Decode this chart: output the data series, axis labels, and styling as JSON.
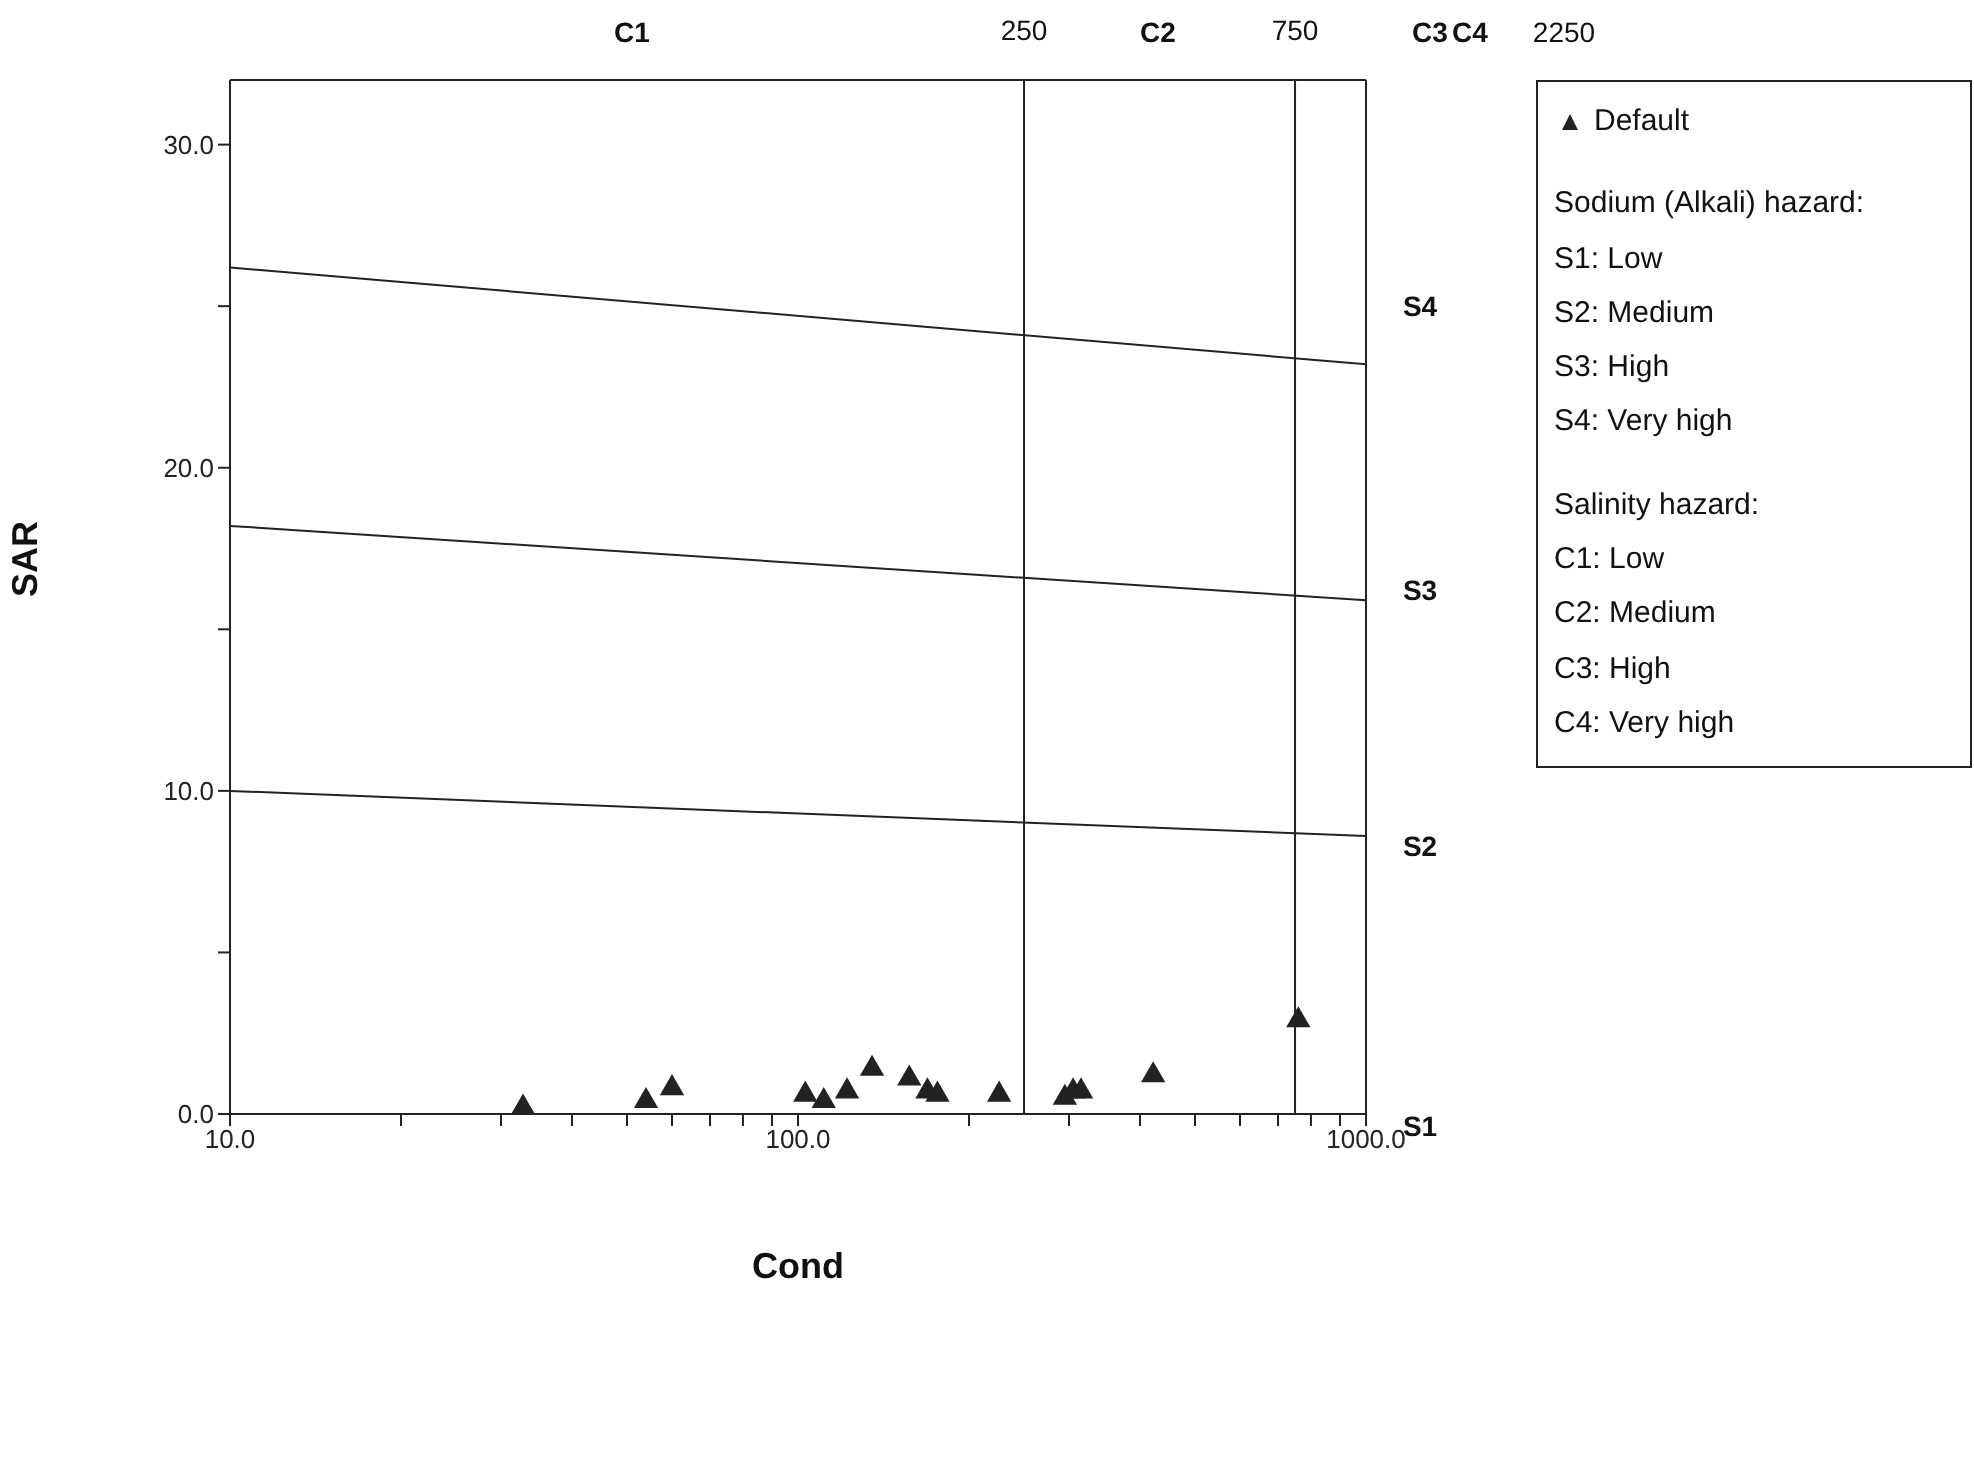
{
  "chart_data": {
    "type": "scatter",
    "xlabel": "Cond",
    "ylabel": "SAR",
    "log": "x",
    "xlim": [
      10,
      1000
    ],
    "ylim": [
      0,
      32
    ],
    "xticks": [
      {
        "value": 10,
        "label": "10.0"
      },
      {
        "value": 20,
        "label": null
      },
      {
        "value": 30,
        "label": null
      },
      {
        "value": 40,
        "label": null
      },
      {
        "value": 50,
        "label": null
      },
      {
        "value": 60,
        "label": null
      },
      {
        "value": 70,
        "label": null
      },
      {
        "value": 80,
        "label": null
      },
      {
        "value": 90,
        "label": null
      },
      {
        "value": 100,
        "label": "100.0"
      },
      {
        "value": 200,
        "label": null
      },
      {
        "value": 300,
        "label": null
      },
      {
        "value": 400,
        "label": null
      },
      {
        "value": 500,
        "label": null
      },
      {
        "value": 600,
        "label": null
      },
      {
        "value": 700,
        "label": null
      },
      {
        "value": 800,
        "label": null
      },
      {
        "value": 900,
        "label": null
      },
      {
        "value": 1000,
        "label": "1000.0"
      }
    ],
    "yticks": [
      {
        "value": 0,
        "label": "0.0"
      },
      {
        "value": 5,
        "label": null
      },
      {
        "value": 10,
        "label": "10.0"
      },
      {
        "value": 15,
        "label": null
      },
      {
        "value": 20,
        "label": "20.0"
      },
      {
        "value": 25,
        "label": null
      },
      {
        "value": 30,
        "label": "30.0"
      }
    ],
    "grid": false,
    "legend": "top right",
    "marker": "triangle",
    "series": [
      {
        "name": "Default",
        "color": "#222222",
        "x": [
          32.8,
          54,
          60,
          103,
          111,
          122,
          135,
          157,
          169,
          176,
          226,
          295,
          305,
          315,
          422,
          760
        ],
        "values": [
          0.2,
          0.4,
          0.8,
          0.6,
          0.4,
          0.7,
          1.4,
          1.1,
          0.7,
          0.6,
          0.6,
          0.5,
          0.7,
          0.7,
          1.2,
          2.9
        ]
      },
      {
        "type": "line",
        "color": "#222222",
        "marker": "none",
        "x": [
          10,
          1000
        ],
        "values": [
          10,
          8.6
        ]
      },
      {
        "type": "line",
        "color": "#222222",
        "marker": "none",
        "x": [
          10,
          1000
        ],
        "values": [
          18.2,
          15.9
        ]
      },
      {
        "type": "line",
        "color": "#222222",
        "marker": "none",
        "x": [
          10,
          1000
        ],
        "values": [
          26.2,
          23.2
        ]
      }
    ],
    "ref_lines": [
      {
        "axis": "x",
        "value": 250,
        "label": "250",
        "color": "#222222"
      },
      {
        "axis": "x",
        "value": 750,
        "label": "750",
        "color": "#222222"
      }
    ],
    "annotations": [
      "C1",
      "C2",
      "C3",
      "C4",
      "2250",
      "S1",
      "S2",
      "S3",
      "S4",
      "Sodium (Alkali) hazard:",
      "S1: Low",
      "S2: Medium",
      "S3: High",
      "S4: Very high",
      "Salinity hazard:",
      "C1: Low",
      "C2: Medium",
      "C3: High",
      "C4: Very high"
    ]
  }
}
